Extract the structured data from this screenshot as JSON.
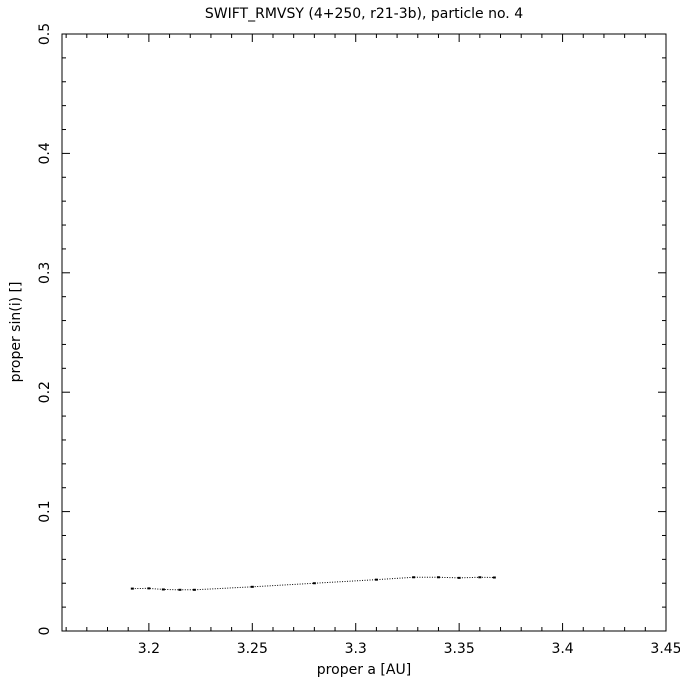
{
  "chart_data": {
    "type": "line",
    "title": "SWIFT_RMVSY (4+250, r21-3b), particle no. 4",
    "xlabel": "proper a [AU]",
    "ylabel": "proper sin(i) []",
    "x": [
      3.192,
      3.2,
      3.207,
      3.215,
      3.222,
      3.25,
      3.28,
      3.31,
      3.328,
      3.34,
      3.35,
      3.36,
      3.367
    ],
    "series": [
      {
        "color": "#000000",
        "values": [
          0.0355,
          0.0357,
          0.0348,
          0.0345,
          0.0345,
          0.037,
          0.04,
          0.043,
          0.045,
          0.045,
          0.0445,
          0.045,
          0.0448
        ]
      }
    ],
    "xlim": [
      3.158,
      3.45
    ],
    "ylim": [
      0,
      0.5
    ],
    "xticks": [
      3.2,
      3.25,
      3.3,
      3.35,
      3.4,
      3.45
    ],
    "yticks": [
      0,
      0.1,
      0.2,
      0.3,
      0.4,
      0.5
    ],
    "xminorticks": [
      3.16,
      3.17,
      3.18,
      3.19,
      3.21,
      3.22,
      3.23,
      3.24,
      3.26,
      3.27,
      3.28,
      3.29,
      3.31,
      3.32,
      3.33,
      3.34,
      3.36,
      3.37,
      3.38,
      3.39,
      3.41,
      3.42,
      3.43,
      3.44
    ],
    "yminorticks": [
      0.02,
      0.04,
      0.06,
      0.08,
      0.12,
      0.14,
      0.16,
      0.18,
      0.22,
      0.24,
      0.26,
      0.28,
      0.32,
      0.34,
      0.36,
      0.38,
      0.42,
      0.44,
      0.46,
      0.48
    ]
  }
}
